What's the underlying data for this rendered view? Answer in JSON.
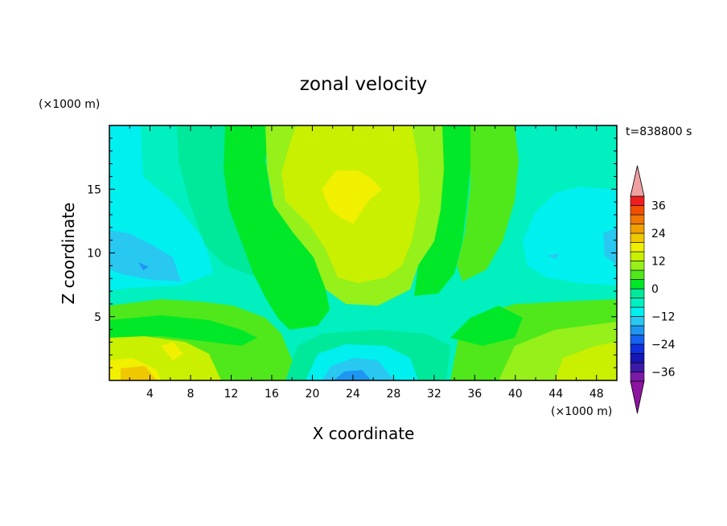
{
  "chart_data": {
    "type": "heatmap",
    "title": "zonal velocity",
    "xlabel": "X coordinate",
    "ylabel": "Z coordinate",
    "x_unit_label": "(×1000 m)",
    "y_unit_label": "(×1000 m)",
    "time_label": "t=838800 s",
    "xlim": [
      0,
      50
    ],
    "ylim": [
      0,
      20
    ],
    "x_ticks": [
      4,
      8,
      12,
      16,
      20,
      24,
      28,
      32,
      36,
      40,
      44,
      48
    ],
    "y_ticks": [
      5,
      10,
      15
    ],
    "colorbar": {
      "levels": [
        -40,
        -36,
        -32,
        -28,
        -24,
        -20,
        -16,
        -12,
        -8,
        -4,
        0,
        4,
        8,
        12,
        16,
        20,
        24,
        28,
        32,
        36,
        40
      ],
      "colors": [
        "#7a1aa8",
        "#3c1aa8",
        "#1616b4",
        "#1030e0",
        "#1464f0",
        "#1e96f0",
        "#28c8f0",
        "#00f0f0",
        "#00f0c0",
        "#00e89a",
        "#00e828",
        "#50e81a",
        "#96f01a",
        "#c8f000",
        "#f0f000",
        "#f0c800",
        "#f0a000",
        "#f07800",
        "#f05000",
        "#f01e1e"
      ],
      "labels": [
        "36",
        "24",
        "12",
        "0",
        "−12",
        "−24",
        "−36"
      ],
      "label_values": [
        36,
        24,
        12,
        0,
        -12,
        -24,
        -36
      ],
      "extend_low_color": "#8c14a0",
      "extend_high_color": "#f0a0a0"
    },
    "regions": [
      {
        "x": 2.5,
        "z": 0.5,
        "value": 14
      },
      {
        "x": 6,
        "z": 3,
        "value": 10
      },
      {
        "x": 4,
        "z": 10.5,
        "value": -16
      },
      {
        "x": 6,
        "z": 9,
        "value": -14
      },
      {
        "x": 14,
        "z": 16,
        "value": 0
      },
      {
        "x": 12,
        "z": 3,
        "value": 5
      },
      {
        "x": 24,
        "z": 15,
        "value": 13
      },
      {
        "x": 24,
        "z": 10,
        "value": 9
      },
      {
        "x": 23,
        "z": 1,
        "value": -14
      },
      {
        "x": 34,
        "z": 10,
        "value": 0
      },
      {
        "x": 38,
        "z": 15,
        "value": -6
      },
      {
        "x": 45,
        "z": 13,
        "value": -10
      },
      {
        "x": 48,
        "z": 11,
        "value": -16
      },
      {
        "x": 46,
        "z": 3,
        "value": 6
      },
      {
        "x": 30,
        "z": 3,
        "value": -2
      }
    ]
  }
}
